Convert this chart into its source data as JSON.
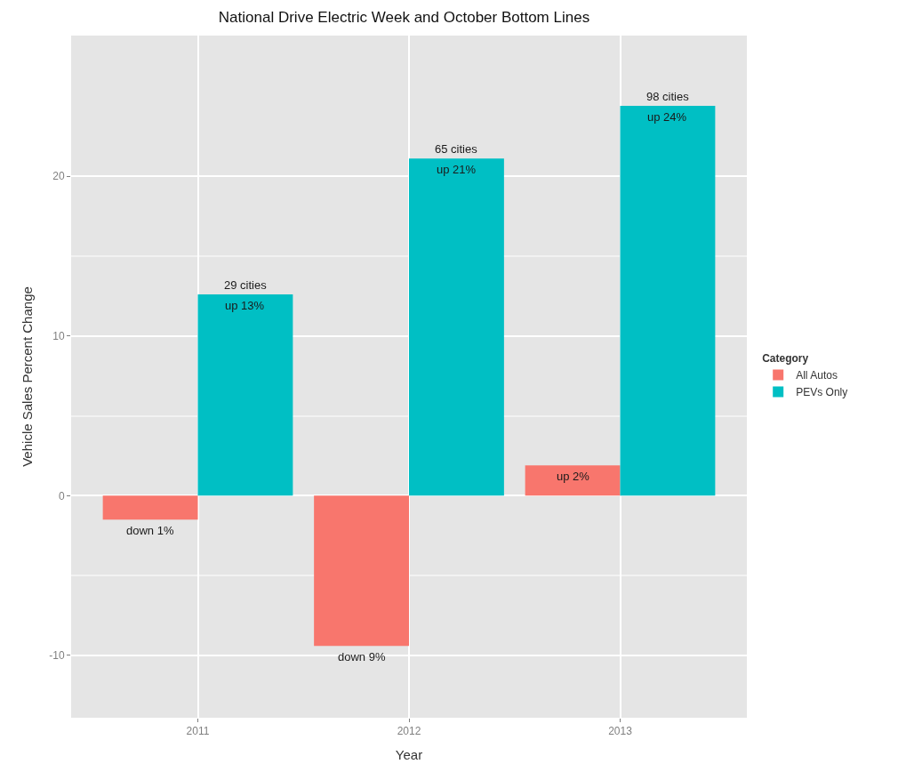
{
  "chart_data": {
    "type": "bar",
    "title": "National Drive Electric Week and October Bottom Lines",
    "xlabel": "Year",
    "ylabel": "Vehicle Sales Percent Change",
    "legend_title": "Category",
    "categories": [
      "2011",
      "2012",
      "2013"
    ],
    "series": [
      {
        "name": "All Autos",
        "color": "#f8766d",
        "values": [
          -1.5,
          -9.4,
          1.9
        ],
        "value_labels": [
          "down 1%",
          "down 9%",
          "up 2%"
        ]
      },
      {
        "name": "PEVs Only",
        "color": "#00bfc4",
        "values": [
          12.6,
          21.1,
          24.4
        ],
        "value_labels": [
          "up 13%",
          "up 21%",
          "up 24%"
        ]
      }
    ],
    "annotations": [
      {
        "text": "29 cities",
        "x": "2011",
        "y": 12.6
      },
      {
        "text": "65 cities",
        "x": "2012",
        "y": 21.1
      },
      {
        "text": "98 cities",
        "x": "2013",
        "y": 24.4
      }
    ],
    "ylim": [
      -13.9,
      28.8
    ],
    "yticks": [
      -10,
      0,
      10,
      20
    ],
    "grid": true,
    "legend": "right"
  }
}
